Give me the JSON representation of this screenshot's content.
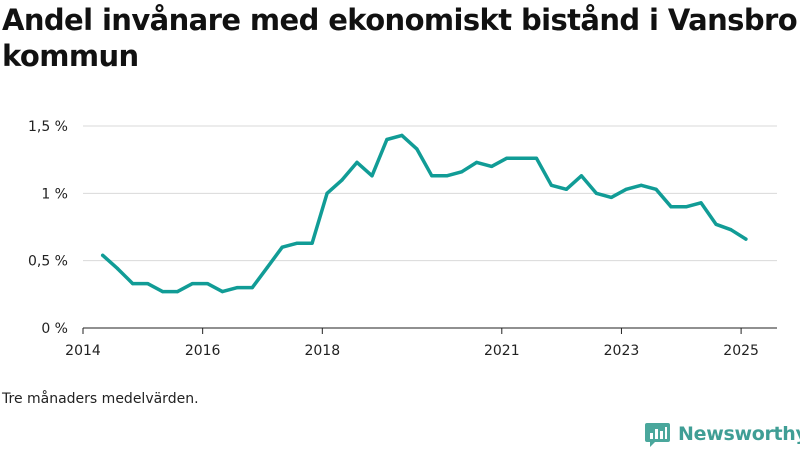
{
  "chart_data": {
    "type": "line",
    "title": "Andel invånare med ekonomiskt bistånd i Vansbro kommun",
    "note": "Tre månaders medelvärden.",
    "x_tick_labels": [
      "2014",
      "2016",
      "2018",
      "2021",
      "2023",
      "2025"
    ],
    "x_ticks": [
      2014.0,
      2016.0,
      2018.0,
      2021.0,
      2023.0,
      2025.0
    ],
    "y_tick_labels": [
      "0 %",
      "0,5 %",
      "1 %",
      "1,5 %"
    ],
    "y_ticks": [
      0,
      0.5,
      1.0,
      1.5
    ],
    "ylim": [
      0,
      1.5
    ],
    "xlim": [
      2014.0,
      2025.6
    ],
    "grid": true,
    "series": [
      {
        "color": "#119c96",
        "x": [
          2014.33,
          2014.58,
          2014.83,
          2015.08,
          2015.33,
          2015.58,
          2015.83,
          2016.08,
          2016.33,
          2016.58,
          2016.83,
          2017.08,
          2017.33,
          2017.58,
          2017.83,
          2018.08,
          2018.33,
          2018.58,
          2018.83,
          2019.08,
          2019.33,
          2019.58,
          2019.83,
          2020.08,
          2020.33,
          2020.58,
          2020.83,
          2021.08,
          2021.33,
          2021.58,
          2021.83,
          2022.08,
          2022.33,
          2022.58,
          2022.83,
          2023.08,
          2023.33,
          2023.58,
          2023.83,
          2024.08,
          2024.33,
          2024.58,
          2024.83,
          2025.08
        ],
        "values": [
          0.54,
          0.44,
          0.33,
          0.33,
          0.27,
          0.27,
          0.33,
          0.33,
          0.27,
          0.3,
          0.3,
          0.45,
          0.6,
          0.63,
          0.63,
          1.0,
          1.1,
          1.23,
          1.13,
          1.4,
          1.43,
          1.33,
          1.13,
          1.13,
          1.16,
          1.23,
          1.2,
          1.26,
          1.26,
          1.26,
          1.06,
          1.03,
          1.13,
          1.0,
          0.97,
          1.03,
          1.06,
          1.03,
          0.9,
          0.9,
          0.93,
          0.77,
          0.73,
          0.66
        ]
      }
    ]
  },
  "brand": {
    "name": "Newsworthy",
    "accent": "#3f9e95"
  }
}
